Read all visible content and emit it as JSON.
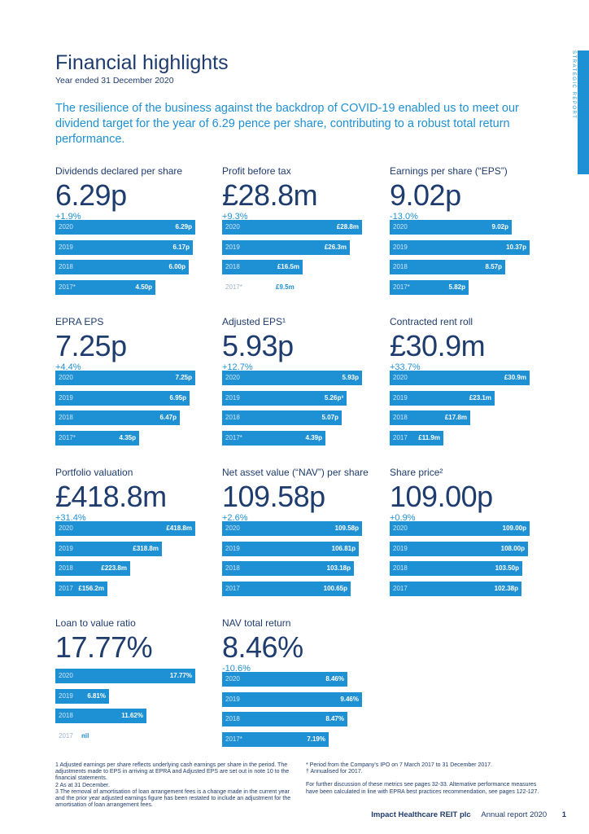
{
  "side_label": "STRATEGIC REPORT",
  "header": {
    "title": "Financial highlights",
    "subtitle": "Year ended 31 December 2020",
    "intro": "The resilience of the business against the backdrop of COVID-19 enabled us to meet our dividend target for the year of 6.29 pence per share, contributing to a robust total return performance."
  },
  "colors": {
    "accent": "#1e90d4",
    "navy": "#1f3c6e"
  },
  "metrics": [
    {
      "title": "Dividends declared per share",
      "value": "6.29p",
      "change": "+1.9%",
      "bars": [
        {
          "year": "2020",
          "label": "6.29p",
          "amount": 6.29
        },
        {
          "year": "2019",
          "label": "6.17p",
          "amount": 6.17
        },
        {
          "year": "2018",
          "label": "6.00p",
          "amount": 6.0
        },
        {
          "year": "2017*",
          "label": "4.50p",
          "amount": 4.5
        }
      ]
    },
    {
      "title": "Profit before tax",
      "value": "£28.8m",
      "change": "+9.3%",
      "bars": [
        {
          "year": "2020",
          "label": "£28.8m",
          "amount": 28.8
        },
        {
          "year": "2019",
          "label": "£26.3m",
          "amount": 26.3
        },
        {
          "year": "2018",
          "label": "£16.5m",
          "amount": 16.5
        },
        {
          "year": "2017*",
          "label": "£9.5m",
          "amount": 9.5,
          "outline": true
        }
      ]
    },
    {
      "title": "Earnings per share (“EPS”)",
      "value": "9.02p",
      "change": "-13.0%",
      "bars": [
        {
          "year": "2020",
          "label": "9.02p",
          "amount": 9.02
        },
        {
          "year": "2019",
          "label": "10.37p",
          "amount": 10.37
        },
        {
          "year": "2018",
          "label": "8.57p",
          "amount": 8.57
        },
        {
          "year": "2017*",
          "label": "5.82p",
          "amount": 5.82
        }
      ]
    },
    {
      "title": "EPRA EPS",
      "value": "7.25p",
      "change": "+4.4%",
      "bars": [
        {
          "year": "2020",
          "label": "7.25p",
          "amount": 7.25
        },
        {
          "year": "2019",
          "label": "6.95p",
          "amount": 6.95
        },
        {
          "year": "2018",
          "label": "6.47p",
          "amount": 6.47
        },
        {
          "year": "2017*",
          "label": "4.35p",
          "amount": 4.35
        }
      ]
    },
    {
      "title": "Adjusted EPS¹",
      "value": "5.93p",
      "change": "+12.7%",
      "bars": [
        {
          "year": "2020",
          "label": "5.93p",
          "amount": 5.93
        },
        {
          "year": "2019",
          "label": "5.26p³",
          "amount": 5.26
        },
        {
          "year": "2018",
          "label": "5.07p",
          "amount": 5.07
        },
        {
          "year": "2017*",
          "label": "4.39p",
          "amount": 4.39
        }
      ]
    },
    {
      "title": "Contracted rent roll",
      "value": "£30.9m",
      "change": "+33.7%",
      "bars": [
        {
          "year": "2020",
          "label": "£30.9m",
          "amount": 30.9
        },
        {
          "year": "2019",
          "label": "£23.1m",
          "amount": 23.1
        },
        {
          "year": "2018",
          "label": "£17.8m",
          "amount": 17.8
        },
        {
          "year": "2017",
          "label": "£11.9m",
          "amount": 11.9
        }
      ]
    },
    {
      "title": "Portfolio valuation",
      "value": "£418.8m",
      "change": "+31.4%",
      "bars": [
        {
          "year": "2020",
          "label": "£418.8m",
          "amount": 418.8
        },
        {
          "year": "2019",
          "label": "£318.8m",
          "amount": 318.8
        },
        {
          "year": "2018",
          "label": "£223.8m",
          "amount": 223.8
        },
        {
          "year": "2017",
          "label": "£156.2m",
          "amount": 156.2
        }
      ]
    },
    {
      "title": "Net asset value (“NAV”) per share",
      "value": "109.58p",
      "change": "+2.6%",
      "bars": [
        {
          "year": "2020",
          "label": "109.58p",
          "amount": 109.58
        },
        {
          "year": "2019",
          "label": "106.81p",
          "amount": 106.81
        },
        {
          "year": "2018",
          "label": "103.18p",
          "amount": 103.18
        },
        {
          "year": "2017",
          "label": "100.65p",
          "amount": 100.65
        }
      ]
    },
    {
      "title": "Share price²",
      "value": "109.00p",
      "change": "+0.9%",
      "bars": [
        {
          "year": "2020",
          "label": "109.00p",
          "amount": 109.0
        },
        {
          "year": "2019",
          "label": "108.00p",
          "amount": 108.0
        },
        {
          "year": "2018",
          "label": "103.50p",
          "amount": 103.5
        },
        {
          "year": "2017",
          "label": "102.38p",
          "amount": 102.38
        }
      ]
    },
    {
      "title": "Loan to value ratio",
      "value": "17.77%",
      "change": "",
      "bars": [
        {
          "year": "2020",
          "label": "17.77%",
          "amount": 17.77
        },
        {
          "year": "2019",
          "label": "6.81%",
          "amount": 6.81
        },
        {
          "year": "2018",
          "label": "11.62%",
          "amount": 11.62
        },
        {
          "year": "2017",
          "label": "nil",
          "amount": 0,
          "outline": true
        }
      ]
    },
    {
      "title": "NAV total return",
      "value": "8.46%",
      "change": "-10.6%",
      "bars": [
        {
          "year": "2020",
          "label": "8.46%",
          "amount": 8.46
        },
        {
          "year": "2019",
          "label": "9.46%",
          "amount": 9.46
        },
        {
          "year": "2018",
          "label": "8.47%",
          "amount": 8.47
        },
        {
          "year": "2017*",
          "label": "7.19%",
          "amount": 7.19
        }
      ]
    }
  ],
  "footnotes": {
    "left": [
      "1 Adjusted earnings per share reflects underlying cash earnings per share in the period. The adjustments made to EPS in arriving at EPRA and Adjusted EPS are set out in note 10 to the financial statements.",
      "2 As at 31 December.",
      "3 The removal of amortisation of loan arrangement fees is a change made in the current year and the prior year adjusted earnings figure has been restated to include an adjustment for the amortisation of loan arrangement fees."
    ],
    "right": [
      "* Period from the Company's IPO on 7 March 2017 to 31 December 2017.",
      "† Annualised for 2017.",
      "For further discussion of these metrics see pages 32-33. Alternative performance measures have been calculated in line with EPRA best practices recommendation, see pages 122-127."
    ]
  },
  "footer": {
    "company": "Impact Healthcare REIT plc",
    "report": "Annual report 2020",
    "page": "1"
  }
}
